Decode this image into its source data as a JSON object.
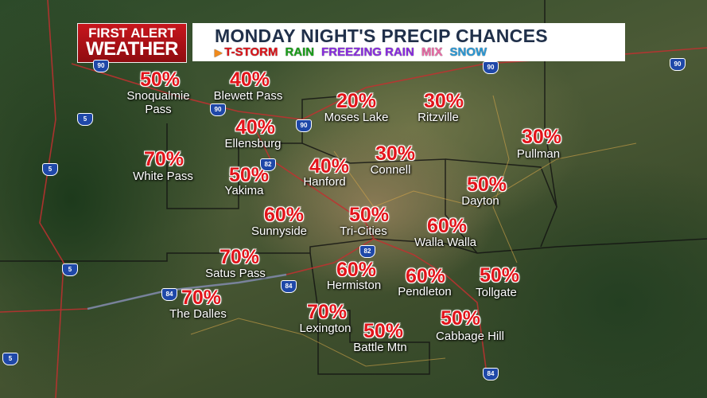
{
  "logo": {
    "line1": "FIRST ALERT",
    "line2": "WEATHER"
  },
  "header": {
    "title": "MONDAY NIGHT'S PRECIP CHANCES"
  },
  "legend": [
    {
      "label": "T-STORM",
      "color": "#e0141a"
    },
    {
      "label": "RAIN",
      "color": "#1aa01a"
    },
    {
      "label": "FREEZING RAIN",
      "color": "#8a2be2"
    },
    {
      "label": "MIX",
      "color": "#ef6aa8"
    },
    {
      "label": "SNOW",
      "color": "#2a9ad8"
    }
  ],
  "locations": [
    {
      "name": "Snoqualmie Pass",
      "chance": "50%"
    },
    {
      "name": "Blewett Pass",
      "chance": "40%"
    },
    {
      "name": "Ellensburg",
      "chance": "40%"
    },
    {
      "name": "Moses Lake",
      "chance": "20%"
    },
    {
      "name": "Ritzville",
      "chance": "30%"
    },
    {
      "name": "Pullman",
      "chance": "30%"
    },
    {
      "name": "White Pass",
      "chance": "70%"
    },
    {
      "name": "Yakima",
      "chance": "50%"
    },
    {
      "name": "Hanford",
      "chance": "40%"
    },
    {
      "name": "Connell",
      "chance": "30%"
    },
    {
      "name": "Dayton",
      "chance": "50%"
    },
    {
      "name": "Sunnyside",
      "chance": "60%"
    },
    {
      "name": "Tri-Cities",
      "chance": "50%"
    },
    {
      "name": "Walla Walla",
      "chance": "60%"
    },
    {
      "name": "Satus Pass",
      "chance": "70%"
    },
    {
      "name": "Hermiston",
      "chance": "60%"
    },
    {
      "name": "Pendleton",
      "chance": "60%"
    },
    {
      "name": "Tollgate",
      "chance": "50%"
    },
    {
      "name": "The Dalles",
      "chance": "70%"
    },
    {
      "name": "Lexington",
      "chance": "70%"
    },
    {
      "name": "Battle Mtn",
      "chance": "50%"
    },
    {
      "name": "Cabbage Hill",
      "chance": "50%"
    }
  ],
  "highways": [
    "90",
    "90",
    "5",
    "5",
    "90",
    "82",
    "90",
    "82",
    "5",
    "84",
    "84",
    "5",
    "84",
    "90"
  ]
}
